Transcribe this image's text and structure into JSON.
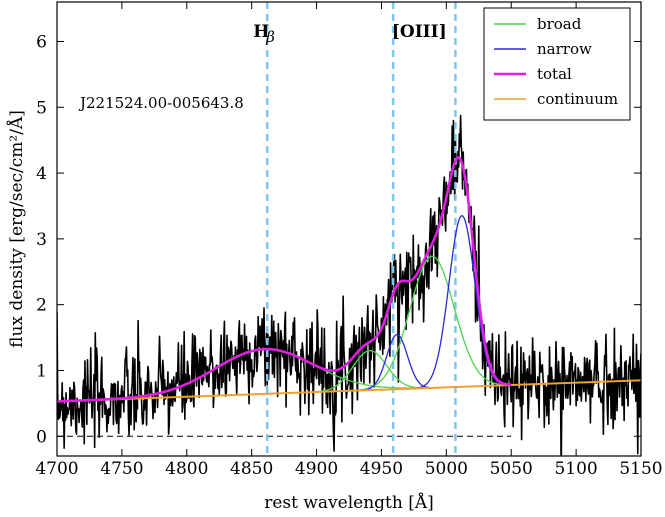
{
  "chart_data": {
    "type": "line",
    "title": "",
    "xlabel": "rest wavelength [Å]",
    "ylabel": "flux density   [erg/sec/cm²/Å]",
    "xlim": [
      4700,
      5150
    ],
    "ylim": [
      -0.3,
      6.6
    ],
    "xticks": [
      4700,
      4750,
      4800,
      4850,
      4900,
      4950,
      5000,
      5050,
      5100,
      5150
    ],
    "yticks": [
      0,
      1,
      2,
      3,
      4,
      5,
      6
    ],
    "object_name": "J221524.00-005643.8",
    "zero_line": {
      "y": 0,
      "x_range": [
        4700,
        5050
      ]
    },
    "line_markers": [
      {
        "label": "H",
        "subscript": "β",
        "x": 4862
      },
      {
        "label": "[OIII]",
        "x": 4959
      },
      {
        "label": "",
        "x": 5007
      }
    ],
    "legend": {
      "placement": "top-right",
      "entries": [
        {
          "label": "broad",
          "color": "#4cd44c"
        },
        {
          "label": "narrow",
          "color": "#2a2ad8"
        },
        {
          "label": "total",
          "color": "#e020e0"
        },
        {
          "label": "continuum",
          "color": "#f0a030"
        }
      ]
    },
    "colors": {
      "spectrum": "#000000",
      "marker": "#7ec8ec",
      "broad": "#4cd44c",
      "narrow": "#2a2ad8",
      "total": "#e020e0",
      "continuum": "#f0a030"
    },
    "continuum": {
      "x": [
        4700,
        5150
      ],
      "y": [
        0.53,
        0.85
      ]
    },
    "components": {
      "broad": [
        {
          "center": 4860,
          "amplitude": 0.68,
          "sigma": 38
        },
        {
          "center": 4941,
          "amplitude": 0.6,
          "sigma": 13
        },
        {
          "center": 4989,
          "amplitude": 2.0,
          "sigma": 17
        }
      ],
      "narrow": [
        {
          "center": 4962,
          "amplitude": 0.83,
          "sigma": 8
        },
        {
          "center": 5012,
          "amplitude": 2.6,
          "sigma": 10
        }
      ]
    },
    "spectrum": {
      "x_range": [
        4700,
        5150
      ],
      "n_points": 900,
      "noise_sigma": 0.35,
      "seed": 7
    }
  }
}
